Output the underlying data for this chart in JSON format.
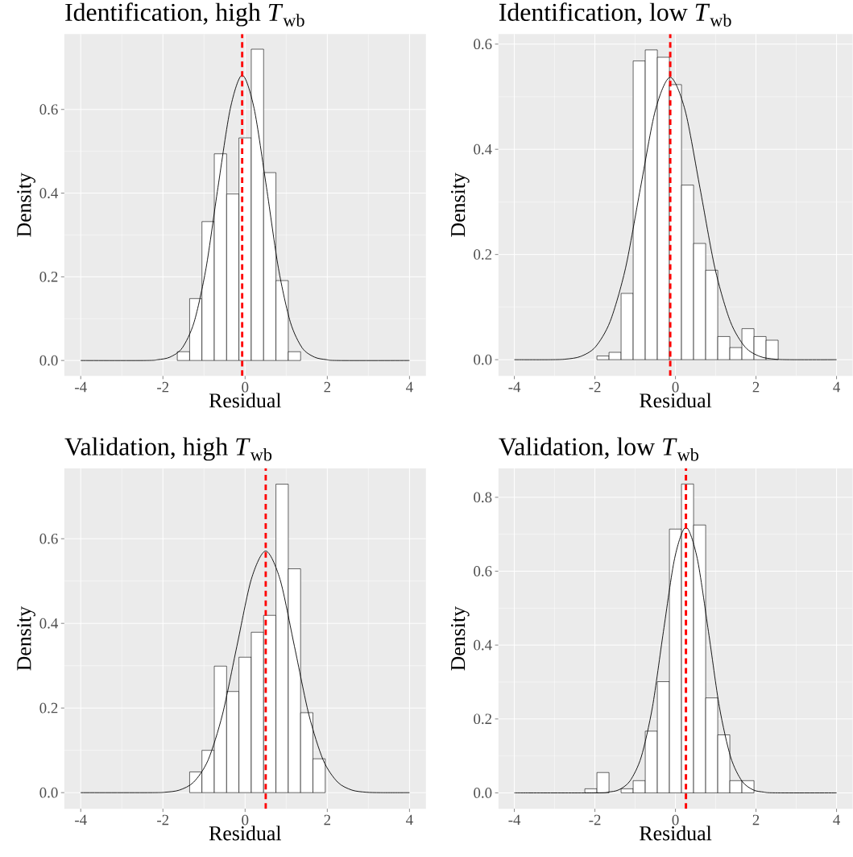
{
  "chart_data": [
    {
      "type": "histogram",
      "title": "Identification, high *T*$_{wb}$",
      "xlabel": "Residual",
      "ylabel": "Density",
      "xlim": [
        -4.4,
        4.4
      ],
      "ylim": [
        -0.037,
        0.78
      ],
      "xticks": [
        -4,
        -2,
        0,
        2,
        4
      ],
      "yticks": [
        {
          "value": 0,
          "label": "0.0"
        },
        {
          "value": 0.2,
          "label": "0.2"
        },
        {
          "value": 0.4,
          "label": "0.4"
        },
        {
          "value": 0.6,
          "label": "0.6"
        }
      ],
      "grid": true,
      "series": [
        {
          "type": "histogram",
          "color": "#ffffff",
          "bins": [
            -1.65,
            -1.35,
            -1.05,
            -0.75,
            -0.45,
            -0.15,
            0.15,
            0.45,
            0.75,
            1.05,
            1.35
          ],
          "values": [
            0.021,
            0.148,
            0.332,
            0.494,
            0.398,
            0.532,
            0.744,
            0.449,
            0.191,
            0.021
          ]
        },
        {
          "type": "line",
          "color": "#000000",
          "x": [
            -4,
            -2.41,
            -2.12,
            -1.83,
            -1.53,
            -1.24,
            -0.95,
            -0.66,
            -0.36,
            -0.07,
            0.22,
            0.52,
            0.81,
            1.1,
            1.39,
            1.69,
            1.98,
            2.27,
            4
          ],
          "values": [
            0,
            0,
            0.002,
            0.008,
            0.03,
            0.092,
            0.221,
            0.414,
            0.602,
            0.682,
            0.602,
            0.414,
            0.221,
            0.092,
            0.03,
            0.008,
            0.002,
            0,
            0
          ]
        }
      ],
      "ref_lines": [
        {
          "axis": "x",
          "value": -0.07,
          "color": "#ff0000",
          "line_style": "dashed"
        }
      ]
    },
    {
      "type": "histogram",
      "title": "Identification, low *T*$_{wb}$",
      "xlabel": "Residual",
      "ylabel": "Density",
      "xlim": [
        -4.4,
        4.4
      ],
      "ylim": [
        -0.031,
        0.619
      ],
      "xticks": [
        -4,
        -2,
        0,
        2,
        4
      ],
      "yticks": [
        {
          "value": 0,
          "label": "0.0"
        },
        {
          "value": 0.2,
          "label": "0.2"
        },
        {
          "value": 0.4,
          "label": "0.4"
        },
        {
          "value": 0.6,
          "label": "0.6"
        }
      ],
      "grid": true,
      "series": [
        {
          "type": "histogram",
          "color": "#ffffff",
          "bins": [
            -1.95,
            -1.65,
            -1.35,
            -1.05,
            -0.75,
            -0.45,
            -0.15,
            0.15,
            0.45,
            0.75,
            1.05,
            1.35,
            1.65,
            1.95,
            2.25,
            2.55
          ],
          "values": [
            0.007,
            0.014,
            0.126,
            0.568,
            0.589,
            0.575,
            0.523,
            0.332,
            0.221,
            0.17,
            0.044,
            0.023,
            0.059,
            0.044,
            0.037
          ]
        },
        {
          "type": "line",
          "color": "#000000",
          "x": [
            -4,
            -3.1,
            -2.73,
            -2.36,
            -1.99,
            -1.62,
            -1.24,
            -0.87,
            -0.5,
            -0.13,
            0.24,
            0.61,
            0.98,
            1.36,
            1.73,
            2.1,
            2.47,
            2.84,
            4
          ],
          "values": [
            0,
            0,
            0.001,
            0.006,
            0.024,
            0.073,
            0.174,
            0.326,
            0.474,
            0.537,
            0.474,
            0.326,
            0.174,
            0.073,
            0.024,
            0.006,
            0.001,
            0,
            0
          ]
        }
      ],
      "ref_lines": [
        {
          "axis": "x",
          "value": -0.13,
          "color": "#ff0000",
          "line_style": "dashed"
        }
      ]
    },
    {
      "type": "histogram",
      "title": "Validation, high *T*$_{wb}$",
      "xlabel": "Residual",
      "ylabel": "Density",
      "xlim": [
        -4.4,
        4.4
      ],
      "ylim": [
        -0.038,
        0.766
      ],
      "xticks": [
        -4,
        -2,
        0,
        2,
        4
      ],
      "yticks": [
        {
          "value": 0,
          "label": "0.0"
        },
        {
          "value": 0.2,
          "label": "0.2"
        },
        {
          "value": 0.4,
          "label": "0.4"
        },
        {
          "value": 0.6,
          "label": "0.6"
        }
      ],
      "grid": true,
      "series": [
        {
          "type": "histogram",
          "color": "#ffffff",
          "bins": [
            -1.35,
            -1.05,
            -0.75,
            -0.45,
            -0.15,
            0.15,
            0.45,
            0.75,
            1.05,
            1.35,
            1.65,
            1.95
          ],
          "values": [
            0.049,
            0.1,
            0.299,
            0.239,
            0.32,
            0.379,
            0.419,
            0.729,
            0.529,
            0.189,
            0.08
          ]
        },
        {
          "type": "line",
          "color": "#000000",
          "x": [
            -4,
            -2.3,
            -1.95,
            -1.6,
            -1.25,
            -0.9,
            -0.55,
            -0.2,
            0.15,
            0.5,
            0.85,
            1.2,
            1.55,
            1.9,
            2.25,
            2.6,
            2.95,
            3.3,
            4
          ],
          "values": [
            0,
            0,
            0.001,
            0.006,
            0.025,
            0.077,
            0.185,
            0.346,
            0.504,
            0.571,
            0.504,
            0.346,
            0.185,
            0.077,
            0.025,
            0.006,
            0.001,
            0,
            0
          ]
        }
      ],
      "ref_lines": [
        {
          "axis": "x",
          "value": 0.5,
          "color": "#ff0000",
          "line_style": "dashed"
        }
      ]
    },
    {
      "type": "histogram",
      "title": "Validation, low *T*$_{wb}$",
      "xlabel": "Residual",
      "ylabel": "Density",
      "xlim": [
        -4.4,
        4.4
      ],
      "ylim": [
        -0.043,
        0.878
      ],
      "xticks": [
        -4,
        -2,
        0,
        2,
        4
      ],
      "yticks": [
        {
          "value": 0,
          "label": "0.0"
        },
        {
          "value": 0.2,
          "label": "0.2"
        },
        {
          "value": 0.4,
          "label": "0.4"
        },
        {
          "value": 0.6,
          "label": "0.6"
        },
        {
          "value": 0.8,
          "label": "0.8"
        }
      ],
      "grid": true,
      "series": [
        {
          "type": "histogram",
          "color": "#ffffff",
          "bins": [
            -2.25,
            -1.95,
            -1.65,
            -1.35,
            -1.05,
            -0.75,
            -0.45,
            -0.15,
            0.15,
            0.45,
            0.75,
            1.05,
            1.35,
            1.65,
            1.95
          ],
          "values": [
            0.011,
            0.055,
            0,
            0.011,
            0.033,
            0.167,
            0.301,
            0.714,
            0.836,
            0.725,
            0.257,
            0.157,
            0.033,
            0.033
          ]
        },
        {
          "type": "line",
          "color": "#000000",
          "x": [
            -4,
            -1.96,
            -1.68,
            -1.41,
            -1.13,
            -0.85,
            -0.57,
            -0.3,
            -0.02,
            0.26,
            0.54,
            0.82,
            1.09,
            1.37,
            1.65,
            1.93,
            2.2,
            2.48,
            4
          ],
          "values": [
            0,
            0,
            0.002,
            0.008,
            0.032,
            0.097,
            0.233,
            0.436,
            0.635,
            0.719,
            0.635,
            0.436,
            0.233,
            0.097,
            0.032,
            0.008,
            0.002,
            0,
            0
          ]
        }
      ],
      "ref_lines": [
        {
          "axis": "x",
          "value": 0.26,
          "color": "#ff0000",
          "line_style": "dashed"
        }
      ]
    }
  ]
}
